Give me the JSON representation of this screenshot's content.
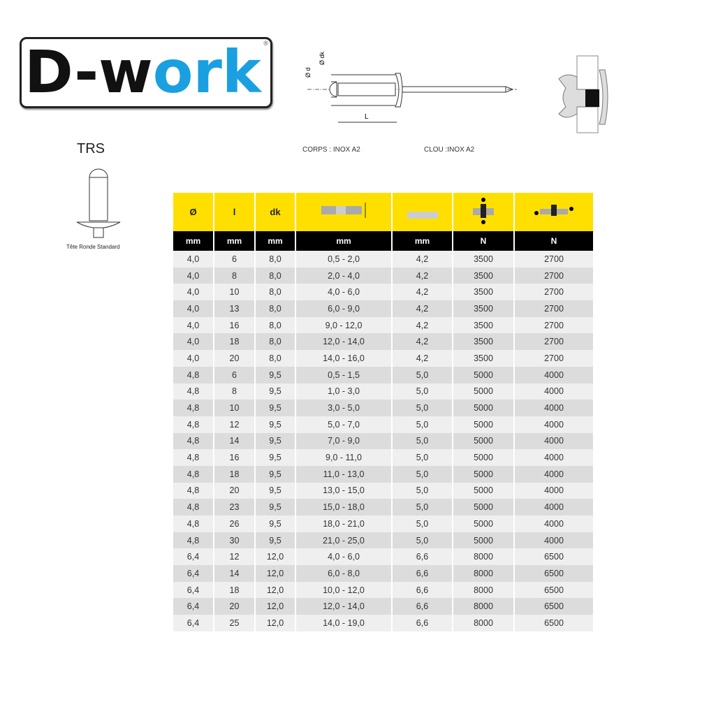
{
  "logo": {
    "text_dark": "D-w",
    "text_blue": "ork",
    "reg": "®",
    "blue": "#1aa0e0"
  },
  "diagram": {
    "label_dk": "Ø dk",
    "label_d": "Ø d",
    "label_L": "L",
    "body_material": "CORPS : INOX A2",
    "mandrel_material": "CLOU :INOX A2"
  },
  "head_type": {
    "code": "TRS",
    "caption": "Tête Ronde Standard"
  },
  "table": {
    "header_color": "#ffdf00",
    "headers": [
      "Ø",
      "l",
      "dk",
      "grip-range-icon",
      "hole-diameter-icon",
      "shear-force-icon",
      "tensile-force-icon"
    ],
    "text_headers": {
      "d": "Ø",
      "l": "l",
      "dk": "dk"
    },
    "units": [
      "mm",
      "mm",
      "mm",
      "mm",
      "mm",
      "N",
      "N"
    ],
    "rows": [
      [
        "4,0",
        "6",
        "8,0",
        "0,5 - 2,0",
        "4,2",
        "3500",
        "2700"
      ],
      [
        "4,0",
        "8",
        "8,0",
        "2,0 - 4,0",
        "4,2",
        "3500",
        "2700"
      ],
      [
        "4,0",
        "10",
        "8,0",
        "4,0 - 6,0",
        "4,2",
        "3500",
        "2700"
      ],
      [
        "4,0",
        "13",
        "8,0",
        "6,0 - 9,0",
        "4,2",
        "3500",
        "2700"
      ],
      [
        "4,0",
        "16",
        "8,0",
        "9,0 - 12,0",
        "4,2",
        "3500",
        "2700"
      ],
      [
        "4,0",
        "18",
        "8,0",
        "12,0 - 14,0",
        "4,2",
        "3500",
        "2700"
      ],
      [
        "4,0",
        "20",
        "8,0",
        "14,0 - 16,0",
        "4,2",
        "3500",
        "2700"
      ],
      [
        "4,8",
        "6",
        "9,5",
        "0,5 - 1,5",
        "5,0",
        "5000",
        "4000"
      ],
      [
        "4,8",
        "8",
        "9,5",
        "1,0 - 3,0",
        "5,0",
        "5000",
        "4000"
      ],
      [
        "4,8",
        "10",
        "9,5",
        "3,0 - 5,0",
        "5,0",
        "5000",
        "4000"
      ],
      [
        "4,8",
        "12",
        "9,5",
        "5,0 - 7,0",
        "5,0",
        "5000",
        "4000"
      ],
      [
        "4,8",
        "14",
        "9,5",
        "7,0 - 9,0",
        "5,0",
        "5000",
        "4000"
      ],
      [
        "4,8",
        "16",
        "9,5",
        "9,0 - 11,0",
        "5,0",
        "5000",
        "4000"
      ],
      [
        "4,8",
        "18",
        "9,5",
        "11,0 - 13,0",
        "5,0",
        "5000",
        "4000"
      ],
      [
        "4,8",
        "20",
        "9,5",
        "13,0 - 15,0",
        "5,0",
        "5000",
        "4000"
      ],
      [
        "4,8",
        "23",
        "9,5",
        "15,0 - 18,0",
        "5,0",
        "5000",
        "4000"
      ],
      [
        "4,8",
        "26",
        "9,5",
        "18,0 - 21,0",
        "5,0",
        "5000",
        "4000"
      ],
      [
        "4,8",
        "30",
        "9,5",
        "21,0 - 25,0",
        "5,0",
        "5000",
        "4000"
      ],
      [
        "6,4",
        "12",
        "12,0",
        "4,0 - 6,0",
        "6,6",
        "8000",
        "6500"
      ],
      [
        "6,4",
        "14",
        "12,0",
        "6,0 - 8,0",
        "6,6",
        "8000",
        "6500"
      ],
      [
        "6,4",
        "18",
        "12,0",
        "10,0 - 12,0",
        "6,6",
        "8000",
        "6500"
      ],
      [
        "6,4",
        "20",
        "12,0",
        "12,0 - 14,0",
        "6,6",
        "8000",
        "6500"
      ],
      [
        "6,4",
        "25",
        "12,0",
        "14,0 - 19,0",
        "6,6",
        "8000",
        "6500"
      ]
    ]
  }
}
